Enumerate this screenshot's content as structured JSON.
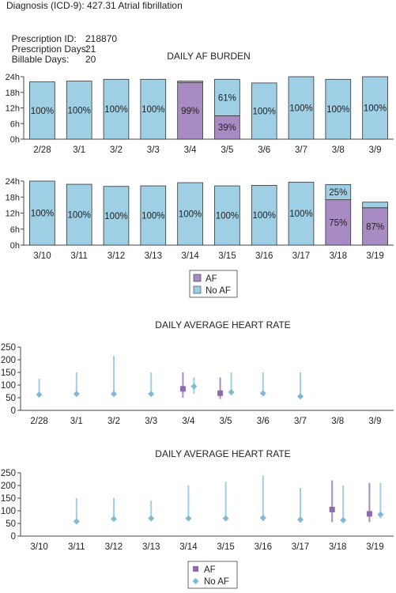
{
  "header": {
    "diagnosis": "Diagnosis (ICD-9): 427.31 Atrial fibrillation",
    "rx_id_label": "Prescription ID:",
    "rx_id_value": "218870",
    "rx_days_label": "Prescription Days:",
    "rx_days_value": "21",
    "billable_label": "Billable Days:",
    "billable_value": "20"
  },
  "colors": {
    "af": "#a98bc4",
    "noaf": "#9fcfe4",
    "af_marker": "#8e6aae",
    "noaf_marker": "#7fb9d6"
  },
  "chart_data": [
    {
      "type": "bar",
      "title": "DAILY AF BURDEN",
      "y_ticks": [
        "0h",
        "6h",
        "12h",
        "18h",
        "24h"
      ],
      "ylim": [
        0,
        24
      ],
      "categories": [
        "2/28",
        "3/1",
        "3/2",
        "3/3",
        "3/4",
        "3/5",
        "3/6",
        "3/7",
        "3/8",
        "3/9"
      ],
      "series": [
        {
          "name": "AF",
          "values": [
            0,
            0,
            0,
            0,
            21.8,
            9,
            0,
            0,
            0,
            0
          ]
        },
        {
          "name": "No AF",
          "values": [
            22,
            22.3,
            23,
            23,
            0.5,
            14,
            21.6,
            24,
            23,
            24
          ]
        }
      ],
      "labels": [
        {
          "i": 0,
          "text": "100%",
          "series": "No AF"
        },
        {
          "i": 1,
          "text": "100%",
          "series": "No AF"
        },
        {
          "i": 2,
          "text": "100%",
          "series": "No AF"
        },
        {
          "i": 3,
          "text": "100%",
          "series": "No AF"
        },
        {
          "i": 4,
          "text": "99%",
          "series": "AF"
        },
        {
          "i": 5,
          "text": "61%",
          "series": "No AF"
        },
        {
          "i": 5,
          "text": "39%",
          "series": "AF"
        },
        {
          "i": 6,
          "text": "100%",
          "series": "No AF"
        },
        {
          "i": 7,
          "text": "100%",
          "series": "No AF"
        },
        {
          "i": 8,
          "text": "100%",
          "series": "No AF"
        },
        {
          "i": 9,
          "text": "100%",
          "series": "No AF"
        }
      ]
    },
    {
      "type": "bar",
      "title": "",
      "y_ticks": [
        "0h",
        "6h",
        "12h",
        "18h",
        "24h"
      ],
      "ylim": [
        0,
        24
      ],
      "categories": [
        "3/10",
        "3/11",
        "3/12",
        "3/13",
        "3/14",
        "3/15",
        "3/16",
        "3/17",
        "3/18",
        "3/19"
      ],
      "series": [
        {
          "name": "AF",
          "values": [
            0,
            0,
            0,
            0,
            0,
            0,
            0,
            0,
            17,
            14
          ]
        },
        {
          "name": "No AF",
          "values": [
            24,
            22.8,
            22,
            22.2,
            23.4,
            22.2,
            22.4,
            23.6,
            5.7,
            2.1
          ]
        }
      ],
      "labels": [
        {
          "i": 0,
          "text": "100%",
          "series": "No AF"
        },
        {
          "i": 1,
          "text": "100%",
          "series": "No AF"
        },
        {
          "i": 2,
          "text": "100%",
          "series": "No AF"
        },
        {
          "i": 3,
          "text": "100%",
          "series": "No AF"
        },
        {
          "i": 4,
          "text": "100%",
          "series": "No AF"
        },
        {
          "i": 5,
          "text": "100%",
          "series": "No AF"
        },
        {
          "i": 6,
          "text": "100%",
          "series": "No AF"
        },
        {
          "i": 7,
          "text": "100%",
          "series": "No AF"
        },
        {
          "i": 8,
          "text": "25%",
          "series": "No AF"
        },
        {
          "i": 8,
          "text": "75%",
          "series": "AF"
        },
        {
          "i": 9,
          "text": "87%",
          "series": "AF"
        }
      ],
      "legend": [
        "AF",
        "No AF"
      ]
    },
    {
      "type": "scatter",
      "title": "DAILY AVERAGE HEART RATE",
      "y_ticks": [
        0,
        50,
        100,
        150,
        200,
        250
      ],
      "ylim": [
        0,
        250
      ],
      "categories": [
        "2/28",
        "3/1",
        "3/2",
        "3/3",
        "3/4",
        "3/5",
        "3/6",
        "3/7",
        "3/8",
        "3/9"
      ],
      "series": [
        {
          "name": "AF",
          "points": [
            {
              "i": 4,
              "min": 50,
              "max": 150,
              "avg": 85
            },
            {
              "i": 5,
              "min": 45,
              "max": 130,
              "avg": 68
            }
          ]
        },
        {
          "name": "No AF",
          "points": [
            {
              "i": 0,
              "min": 55,
              "max": 125,
              "avg": 62
            },
            {
              "i": 1,
              "min": 60,
              "max": 150,
              "avg": 65
            },
            {
              "i": 2,
              "min": 60,
              "max": 215,
              "avg": 65
            },
            {
              "i": 3,
              "min": 60,
              "max": 150,
              "avg": 65
            },
            {
              "i": 4,
              "min": 65,
              "max": 130,
              "avg": 95
            },
            {
              "i": 5,
              "min": 60,
              "max": 150,
              "avg": 72
            },
            {
              "i": 6,
              "min": 60,
              "max": 150,
              "avg": 67
            },
            {
              "i": 7,
              "min": 50,
              "max": 150,
              "avg": 55
            }
          ]
        }
      ]
    },
    {
      "type": "scatter",
      "title": "DAILY AVERAGE HEART RATE",
      "y_ticks": [
        0,
        50,
        100,
        150,
        200,
        250
      ],
      "ylim": [
        0,
        250
      ],
      "categories": [
        "3/10",
        "3/11",
        "3/12",
        "3/13",
        "3/14",
        "3/15",
        "3/16",
        "3/17",
        "3/18",
        "3/19"
      ],
      "series": [
        {
          "name": "AF",
          "points": [
            {
              "i": 8,
              "min": 55,
              "max": 220,
              "avg": 105
            },
            {
              "i": 9,
              "min": 55,
              "max": 210,
              "avg": 88
            }
          ]
        },
        {
          "name": "No AF",
          "points": [
            {
              "i": 1,
              "min": 55,
              "max": 150,
              "avg": 58
            },
            {
              "i": 2,
              "min": 60,
              "max": 150,
              "avg": 68
            },
            {
              "i": 3,
              "min": 60,
              "max": 140,
              "avg": 70
            },
            {
              "i": 4,
              "min": 60,
              "max": 200,
              "avg": 70
            },
            {
              "i": 5,
              "min": 60,
              "max": 215,
              "avg": 70
            },
            {
              "i": 6,
              "min": 60,
              "max": 240,
              "avg": 72
            },
            {
              "i": 7,
              "min": 55,
              "max": 190,
              "avg": 65
            },
            {
              "i": 8,
              "min": 60,
              "max": 200,
              "avg": 63
            },
            {
              "i": 9,
              "min": 70,
              "max": 210,
              "avg": 85
            }
          ]
        }
      ],
      "legend": [
        "AF",
        "No AF"
      ]
    }
  ]
}
